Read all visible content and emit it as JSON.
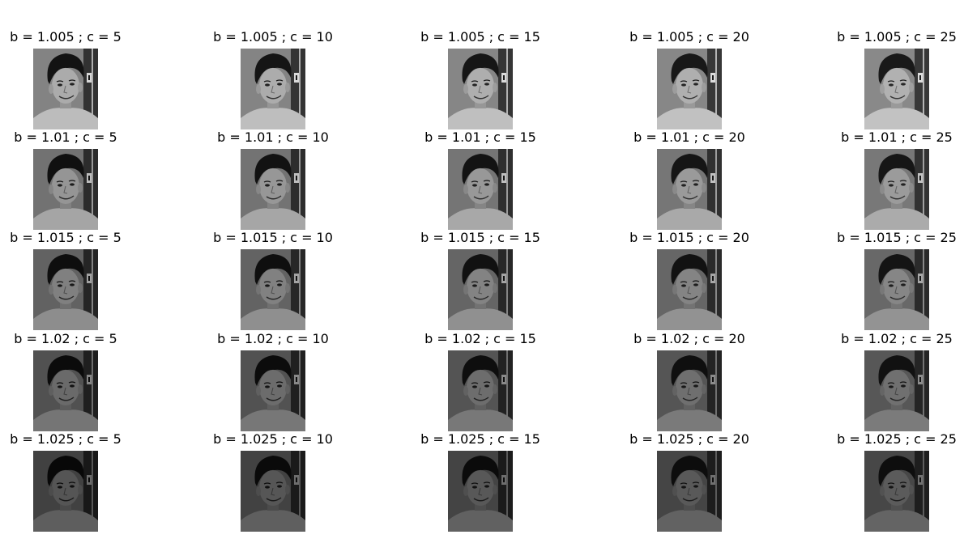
{
  "figure": {
    "panels": [
      {
        "title": "b = 1.005 ; c = 5",
        "b": 1.005,
        "c": 5
      },
      {
        "title": "b = 1.005 ; c = 10",
        "b": 1.005,
        "c": 10
      },
      {
        "title": "b = 1.005 ; c = 15",
        "b": 1.005,
        "c": 15
      },
      {
        "title": "b = 1.005 ; c = 20",
        "b": 1.005,
        "c": 20
      },
      {
        "title": "b = 1.005 ; c = 25",
        "b": 1.005,
        "c": 25
      },
      {
        "title": "b = 1.01 ; c = 5",
        "b": 1.01,
        "c": 5
      },
      {
        "title": "b = 1.01 ; c = 10",
        "b": 1.01,
        "c": 10
      },
      {
        "title": "b = 1.01 ; c = 15",
        "b": 1.01,
        "c": 15
      },
      {
        "title": "b = 1.01 ; c = 20",
        "b": 1.01,
        "c": 20
      },
      {
        "title": "b = 1.01 ; c = 25",
        "b": 1.01,
        "c": 25
      },
      {
        "title": "b = 1.015 ; c = 5",
        "b": 1.015,
        "c": 5
      },
      {
        "title": "b = 1.015 ; c = 10",
        "b": 1.015,
        "c": 10
      },
      {
        "title": "b = 1.015 ; c = 15",
        "b": 1.015,
        "c": 15
      },
      {
        "title": "b = 1.015 ; c = 20",
        "b": 1.015,
        "c": 20
      },
      {
        "title": "b = 1.015 ; c = 25",
        "b": 1.015,
        "c": 25
      },
      {
        "title": "b = 1.02 ; c = 5",
        "b": 1.02,
        "c": 5
      },
      {
        "title": "b = 1.02 ; c = 10",
        "b": 1.02,
        "c": 10
      },
      {
        "title": "b = 1.02 ; c = 15",
        "b": 1.02,
        "c": 15
      },
      {
        "title": "b = 1.02 ; c = 20",
        "b": 1.02,
        "c": 20
      },
      {
        "title": "b = 1.02 ; c = 25",
        "b": 1.02,
        "c": 25
      },
      {
        "title": "b = 1.025 ; c = 5",
        "b": 1.025,
        "c": 5
      },
      {
        "title": "b = 1.025 ; c = 10",
        "b": 1.025,
        "c": 10
      },
      {
        "title": "b = 1.025 ; c = 15",
        "b": 1.025,
        "c": 15
      },
      {
        "title": "b = 1.025 ; c = 20",
        "b": 1.025,
        "c": 20
      },
      {
        "title": "b = 1.025 ; c = 25",
        "b": 1.025,
        "c": 25
      }
    ]
  }
}
